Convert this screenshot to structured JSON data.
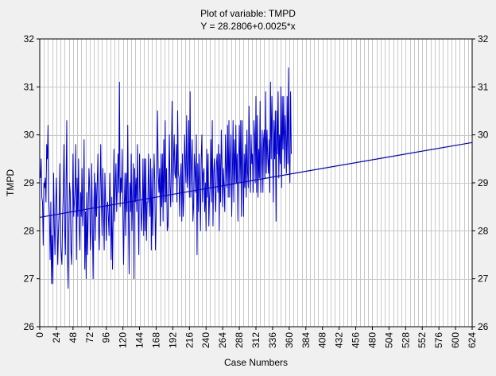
{
  "chart_data": {
    "type": "line",
    "title": "Plot of variable: TMPD",
    "subtitle": "Y = 28.2806+0.0025*x",
    "xlabel": "Case Numbers",
    "ylabel": "TMPD",
    "xlim": [
      0,
      624
    ],
    "ylim": [
      26,
      32
    ],
    "x_ticks": [
      0,
      24,
      48,
      72,
      96,
      120,
      144,
      168,
      192,
      216,
      240,
      264,
      288,
      312,
      336,
      360,
      384,
      408,
      432,
      456,
      480,
      504,
      528,
      552,
      576,
      600,
      624
    ],
    "y_ticks": [
      26,
      27,
      28,
      29,
      30,
      31,
      32
    ],
    "grid": true,
    "regression": {
      "intercept": 28.2806,
      "slope": 0.0025
    },
    "series": [
      {
        "color": "#0000cc",
        "x_start": 1,
        "x_step": 1,
        "values": [
          29.1,
          29.5,
          28.7,
          28.6,
          27.7,
          29.0,
          28.9,
          29.1,
          28.6,
          29.8,
          29.5,
          30.2,
          28.7,
          28.3,
          27.4,
          28.6,
          26.9,
          27.9,
          26.9,
          29.2,
          28.1,
          27.5,
          28.5,
          29.1,
          28.3,
          27.3,
          28.0,
          28.4,
          29.4,
          27.8,
          27.5,
          27.3,
          28.3,
          28.8,
          29.8,
          28.0,
          27.5,
          29.0,
          30.3,
          27.5,
          26.8,
          28.1,
          29.0,
          28.8,
          27.6,
          27.3,
          28.2,
          29.6,
          28.3,
          28.6,
          28.9,
          29.8,
          27.4,
          29.1,
          28.3,
          29.5,
          28.1,
          27.6,
          28.8,
          28.3,
          29.3,
          28.1,
          28.5,
          29.9,
          27.2,
          28.4,
          27.0,
          28.8,
          27.5,
          28.4,
          29.3,
          28.9,
          27.6,
          28.0,
          29.4,
          28.1,
          27.0,
          28.5,
          29.2,
          27.8,
          29.0,
          28.3,
          29.0,
          29.6,
          28.1,
          27.6,
          28.8,
          29.8,
          28.6,
          27.9,
          29.3,
          28.4,
          27.6,
          29.2,
          28.6,
          27.8,
          28.5,
          28.6,
          28.3,
          27.9,
          29.2,
          28.4,
          27.4,
          28.7,
          27.2,
          28.3,
          29.7,
          28.2,
          28.9,
          29.4,
          28.4,
          28.9,
          29.6,
          28.8,
          31.1,
          28.5,
          29.1,
          28.8,
          29.7,
          28.3,
          27.3,
          28.5,
          29.2,
          27.9,
          29.2,
          28.4,
          30.2,
          28.3,
          27.1,
          29.0,
          28.4,
          29.6,
          28.0,
          28.7,
          29.4,
          27.0,
          29.3,
          28.6,
          29.1,
          28.4,
          29.8,
          28.5,
          27.5,
          29.6,
          28.8,
          28.6,
          28.0,
          28.5,
          29.5,
          27.9,
          29.5,
          28.0,
          29.5,
          27.8,
          28.6,
          28.6,
          29.6,
          28.7,
          28.3,
          29.5,
          27.6,
          29.3,
          27.9,
          28.7,
          29.6,
          29.0,
          27.6,
          28.3,
          29.2,
          30.5,
          29.2,
          28.8,
          29.3,
          28.1,
          29.6,
          28.5,
          29.6,
          28.2,
          29.9,
          28.6,
          30.3,
          28.6,
          29.3,
          28.0,
          28.1,
          29.0,
          30.0,
          28.9,
          28.5,
          29.5,
          30.7,
          28.6,
          29.4,
          30.0,
          29.2,
          29.1,
          29.8,
          28.6,
          30.5,
          29.2,
          29.1,
          28.3,
          29.1,
          29.4,
          28.2,
          29.6,
          28.3,
          28.7,
          30.0,
          29.4,
          29.0,
          30.4,
          28.9,
          29.2,
          30.3,
          28.7,
          30.9,
          28.7,
          29.4,
          29.9,
          28.2,
          28.5,
          29.6,
          29.3,
          28.8,
          30.0,
          27.5,
          29.4,
          28.4,
          29.6,
          28.9,
          28.0,
          29.5,
          30.0,
          28.6,
          29.2,
          29.3,
          28.4,
          29.0,
          28.0,
          29.7,
          28.7,
          29.6,
          28.1,
          28.7,
          29.0,
          29.9,
          28.6,
          30.3,
          28.1,
          29.2,
          29.5,
          28.8,
          28.4,
          29.4,
          29.6,
          28.8,
          29.8,
          28.0,
          29.6,
          28.6,
          30.1,
          29.4,
          28.5,
          29.3,
          28.9,
          28.4,
          30.0,
          29.3,
          28.9,
          30.2,
          28.7,
          30.3,
          28.7,
          29.5,
          30.0,
          28.3,
          29.2,
          30.3,
          28.6,
          29.9,
          29.0,
          30.2,
          29.0,
          29.6,
          28.2,
          29.4,
          30.2,
          29.0,
          30.3,
          28.3,
          30.3,
          29.3,
          28.3,
          29.6,
          28.9,
          29.8,
          28.7,
          30.1,
          29.2,
          28.9,
          30.6,
          29.5,
          28.8,
          30.0,
          29.4,
          29.6,
          28.8,
          30.3,
          30.0,
          29.0,
          30.8,
          28.8,
          30.4,
          28.7,
          29.7,
          29.1,
          30.7,
          28.8,
          29.6,
          30.1,
          28.8,
          29.9,
          30.1,
          29.1,
          30.9,
          29.2,
          30.1,
          29.5,
          29.2,
          29.9,
          28.8,
          31.1,
          29.5,
          30.8,
          29.8,
          28.6,
          30.3,
          29.5,
          30.5,
          28.2,
          30.5,
          29.6,
          30.9,
          29.1,
          30.0,
          29.4,
          31.0,
          28.9,
          30.8,
          29.7,
          30.8,
          29.3,
          30.4,
          30.0,
          29.2,
          30.8,
          29.4,
          31.4,
          29.5,
          29.0,
          30.9,
          29.6
        ]
      }
    ]
  }
}
